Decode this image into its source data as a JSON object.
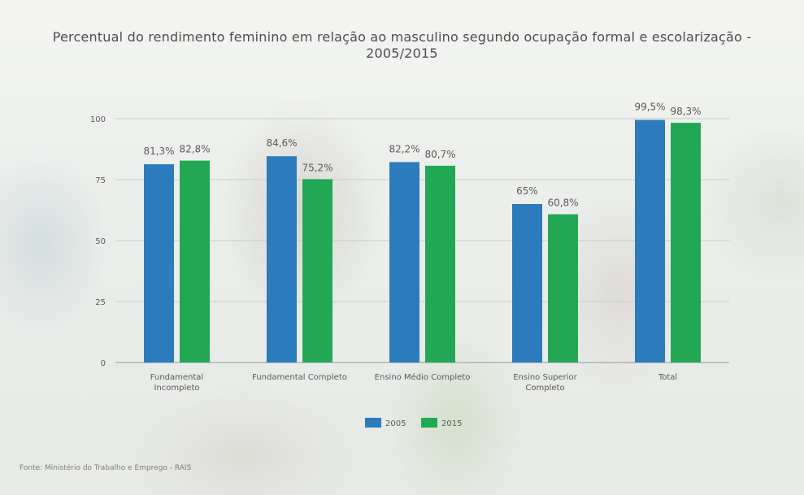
{
  "title": "Percentual do rendimento feminino em relação ao masculino segundo ocupação formal e escolarização - 2005/2015",
  "source": "Fonte: Ministério do Trabalho e Emprego - RAIS",
  "colors": {
    "s2005": "#2c7bbd",
    "s2015": "#22a855"
  },
  "chart_data": {
    "type": "bar",
    "title": "Percentual do rendimento feminino em relação ao masculino segundo ocupação formal e escolarização - 2005/2015",
    "xlabel": "",
    "ylabel": "",
    "ylim": [
      0,
      100
    ],
    "yticks": [
      "0",
      "25",
      "50",
      "75",
      "100"
    ],
    "categories": [
      [
        "Fundamental",
        "Incompleto"
      ],
      [
        "Fundamental Completo"
      ],
      [
        "Ensino Médio Completo"
      ],
      [
        "Ensino Superior",
        "Completo"
      ],
      [
        "Total"
      ]
    ],
    "series": [
      {
        "name": "2005",
        "values": [
          81.3,
          84.6,
          82.2,
          65,
          99.5
        ],
        "labels": [
          "81,3%",
          "84,6%",
          "82,2%",
          "65%",
          "99,5%"
        ]
      },
      {
        "name": "2015",
        "values": [
          82.8,
          75.2,
          80.7,
          60.8,
          98.3
        ],
        "labels": [
          "82,8%",
          "75,2%",
          "80,7%",
          "60,8%",
          "98,3%"
        ]
      }
    ],
    "grid": true,
    "legend": "bottom-center"
  }
}
